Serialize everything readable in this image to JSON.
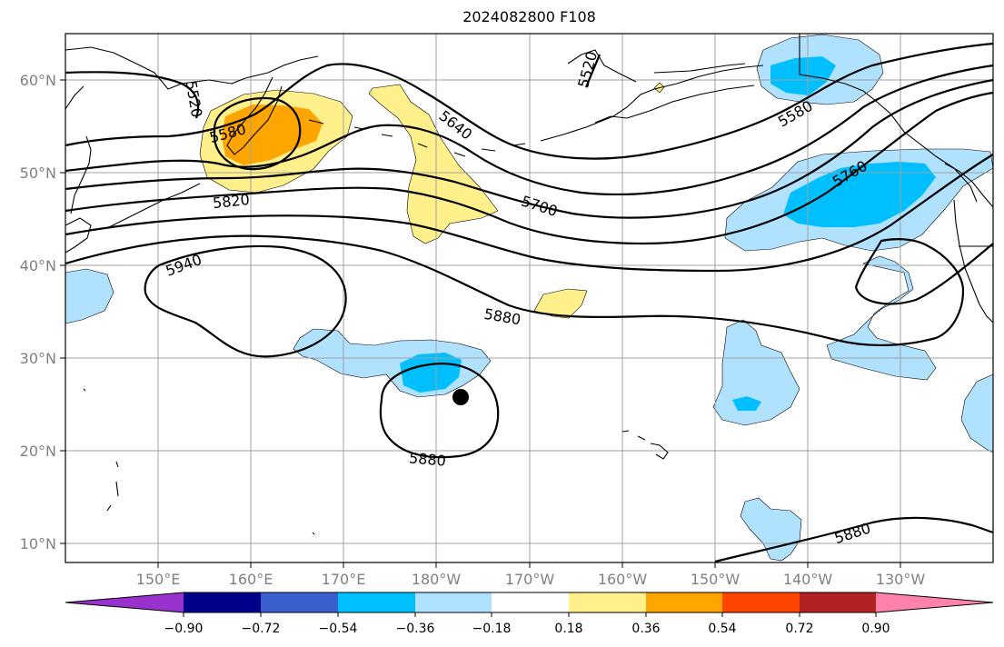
{
  "title": "2024082800 F108",
  "latitude_labels": [
    "60°N",
    "50°N",
    "40°N",
    "30°N",
    "20°N",
    "10°N"
  ],
  "longitude_labels": [
    "150°E",
    "160°E",
    "170°E",
    "180°W",
    "170°W",
    "160°W",
    "150°W",
    "140°W",
    "130°W"
  ],
  "contour_labels": [
    "5520",
    "5520",
    "5580",
    "5640",
    "5580",
    "5700",
    "5760",
    "5820",
    "5940",
    "5880",
    "5880",
    "5880"
  ],
  "colorbar": {
    "tick_labels": [
      "−0.90",
      "−0.72",
      "−0.54",
      "−0.36",
      "−0.18",
      "0.18",
      "0.36",
      "0.54",
      "0.72",
      "0.90"
    ],
    "colors": [
      "#9932cc",
      "#00008b",
      "#3a5fcd",
      "#00bfff",
      "#b0e2ff",
      "#ffffff",
      "#fff08c",
      "#ffa500",
      "#ff4500",
      "#b22222",
      "#ff82ab"
    ]
  },
  "colors": {
    "shade_light_blue": "#b0e2ff",
    "shade_deep_sky_blue": "#00bfff",
    "shade_light_yellow": "#fff08c",
    "shade_orange": "#ffa500",
    "contour": "#000000",
    "gridline": "#a0a0a0"
  },
  "marker": "storm-center-dot"
}
